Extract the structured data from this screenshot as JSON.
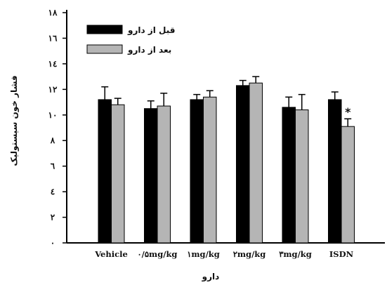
{
  "chart_data": {
    "type": "bar",
    "xlabel": "دارو",
    "ylabel": "فشار خون سیستولیک",
    "ylim": [
      0,
      18
    ],
    "yticks": [
      0,
      2,
      4,
      6,
      8,
      10,
      12,
      14,
      16,
      18
    ],
    "ytick_labels": [
      "۰",
      "۲",
      "٤",
      "٦",
      "۸",
      "۱۰",
      "۱۲",
      "۱٤",
      "۱٦",
      "۱۸"
    ],
    "categories": [
      "Vehicle",
      "۰/۵mg/kg",
      "۱mg/kg",
      "۲mg/kg",
      "۳mg/kg",
      "ISDN"
    ],
    "series": [
      {
        "name": "قبل از دارو",
        "color": "#000000",
        "values": [
          11.2,
          10.5,
          11.2,
          12.3,
          10.6,
          11.2
        ],
        "errors": [
          1.0,
          0.6,
          0.4,
          0.4,
          0.8,
          0.6
        ]
      },
      {
        "name": "بعد از دارو",
        "color": "#b5b5b5",
        "values": [
          10.8,
          10.7,
          11.4,
          12.5,
          10.4,
          9.1
        ],
        "errors": [
          0.5,
          1.0,
          0.5,
          0.5,
          1.2,
          0.6
        ]
      }
    ],
    "annotations": [
      {
        "category": "ISDN",
        "series": 1,
        "text": "*"
      }
    ],
    "legend_position": "top-left",
    "grid": false
  }
}
